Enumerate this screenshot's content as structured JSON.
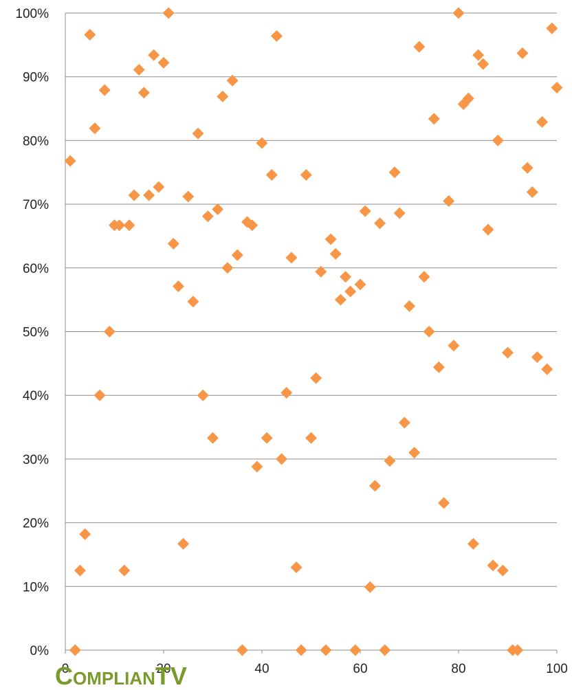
{
  "chart_data": {
    "type": "scatter",
    "title": "",
    "xlabel": "",
    "ylabel": "",
    "xlim": [
      0,
      100
    ],
    "ylim": [
      0,
      1
    ],
    "x_ticks": [
      "0",
      "20",
      "40",
      "60",
      "80",
      "100"
    ],
    "y_ticks": [
      "0%",
      "10%",
      "20%",
      "30%",
      "40%",
      "50%",
      "60%",
      "70%",
      "80%",
      "90%",
      "100%"
    ],
    "grid": "horizontal",
    "marker": "diamond",
    "color": "#f79646",
    "legend": "none",
    "points": [
      [
        1,
        0.768
      ],
      [
        2,
        0.0
      ],
      [
        3,
        0.125
      ],
      [
        4,
        0.182
      ],
      [
        5,
        0.966
      ],
      [
        6,
        0.819
      ],
      [
        7,
        0.4
      ],
      [
        8,
        0.879
      ],
      [
        9,
        0.5
      ],
      [
        10,
        0.667
      ],
      [
        11,
        0.667
      ],
      [
        12,
        0.125
      ],
      [
        13,
        0.667
      ],
      [
        14,
        0.714
      ],
      [
        15,
        0.911
      ],
      [
        16,
        0.875
      ],
      [
        17,
        0.714
      ],
      [
        18,
        0.934
      ],
      [
        19,
        0.727
      ],
      [
        20,
        0.922
      ],
      [
        21,
        1.0
      ],
      [
        22,
        0.638
      ],
      [
        23,
        0.571
      ],
      [
        24,
        0.167
      ],
      [
        25,
        0.712
      ],
      [
        26,
        0.547
      ],
      [
        27,
        0.811
      ],
      [
        28,
        0.4
      ],
      [
        29,
        0.681
      ],
      [
        30,
        0.333
      ],
      [
        31,
        0.692
      ],
      [
        32,
        0.869
      ],
      [
        33,
        0.6
      ],
      [
        34,
        0.894
      ],
      [
        35,
        0.62
      ],
      [
        36,
        0.0
      ],
      [
        37,
        0.672
      ],
      [
        38,
        0.667
      ],
      [
        39,
        0.288
      ],
      [
        40,
        0.796
      ],
      [
        41,
        0.333
      ],
      [
        42,
        0.746
      ],
      [
        43,
        0.964
      ],
      [
        44,
        0.3
      ],
      [
        45,
        0.404
      ],
      [
        46,
        0.616
      ],
      [
        47,
        0.13
      ],
      [
        48,
        0.0
      ],
      [
        49,
        0.746
      ],
      [
        50,
        0.333
      ],
      [
        51,
        0.427
      ],
      [
        52,
        0.594
      ],
      [
        53,
        0.0
      ],
      [
        54,
        0.645
      ],
      [
        55,
        0.622
      ],
      [
        56,
        0.55
      ],
      [
        57,
        0.586
      ],
      [
        58,
        0.563
      ],
      [
        59,
        0.0
      ],
      [
        60,
        0.574
      ],
      [
        61,
        0.689
      ],
      [
        62,
        0.099
      ],
      [
        63,
        0.258
      ],
      [
        64,
        0.67
      ],
      [
        65,
        0.0
      ],
      [
        66,
        0.297
      ],
      [
        67,
        0.75
      ],
      [
        68,
        0.686
      ],
      [
        69,
        0.357
      ],
      [
        70,
        0.54
      ],
      [
        71,
        0.31
      ],
      [
        72,
        0.947
      ],
      [
        73,
        0.586
      ],
      [
        74,
        0.5
      ],
      [
        75,
        0.834
      ],
      [
        76,
        0.444
      ],
      [
        77,
        0.231
      ],
      [
        78,
        0.705
      ],
      [
        79,
        0.478
      ],
      [
        80,
        1.0
      ],
      [
        81,
        0.857
      ],
      [
        82,
        0.866
      ],
      [
        83,
        0.167
      ],
      [
        84,
        0.934
      ],
      [
        85,
        0.92
      ],
      [
        86,
        0.66
      ],
      [
        87,
        0.133
      ],
      [
        88,
        0.8
      ],
      [
        89,
        0.125
      ],
      [
        90,
        0.467
      ],
      [
        91,
        0.0
      ],
      [
        92,
        0.0
      ],
      [
        93,
        0.937
      ],
      [
        94,
        0.757
      ],
      [
        95,
        0.719
      ],
      [
        96,
        0.46
      ],
      [
        97,
        0.829
      ],
      [
        98,
        0.441
      ],
      [
        99,
        0.976
      ],
      [
        100,
        0.883
      ]
    ]
  },
  "watermark": {
    "text_big_c": "C",
    "text_small_mid": "OMPLIAN",
    "text_big_tv": "TV"
  }
}
